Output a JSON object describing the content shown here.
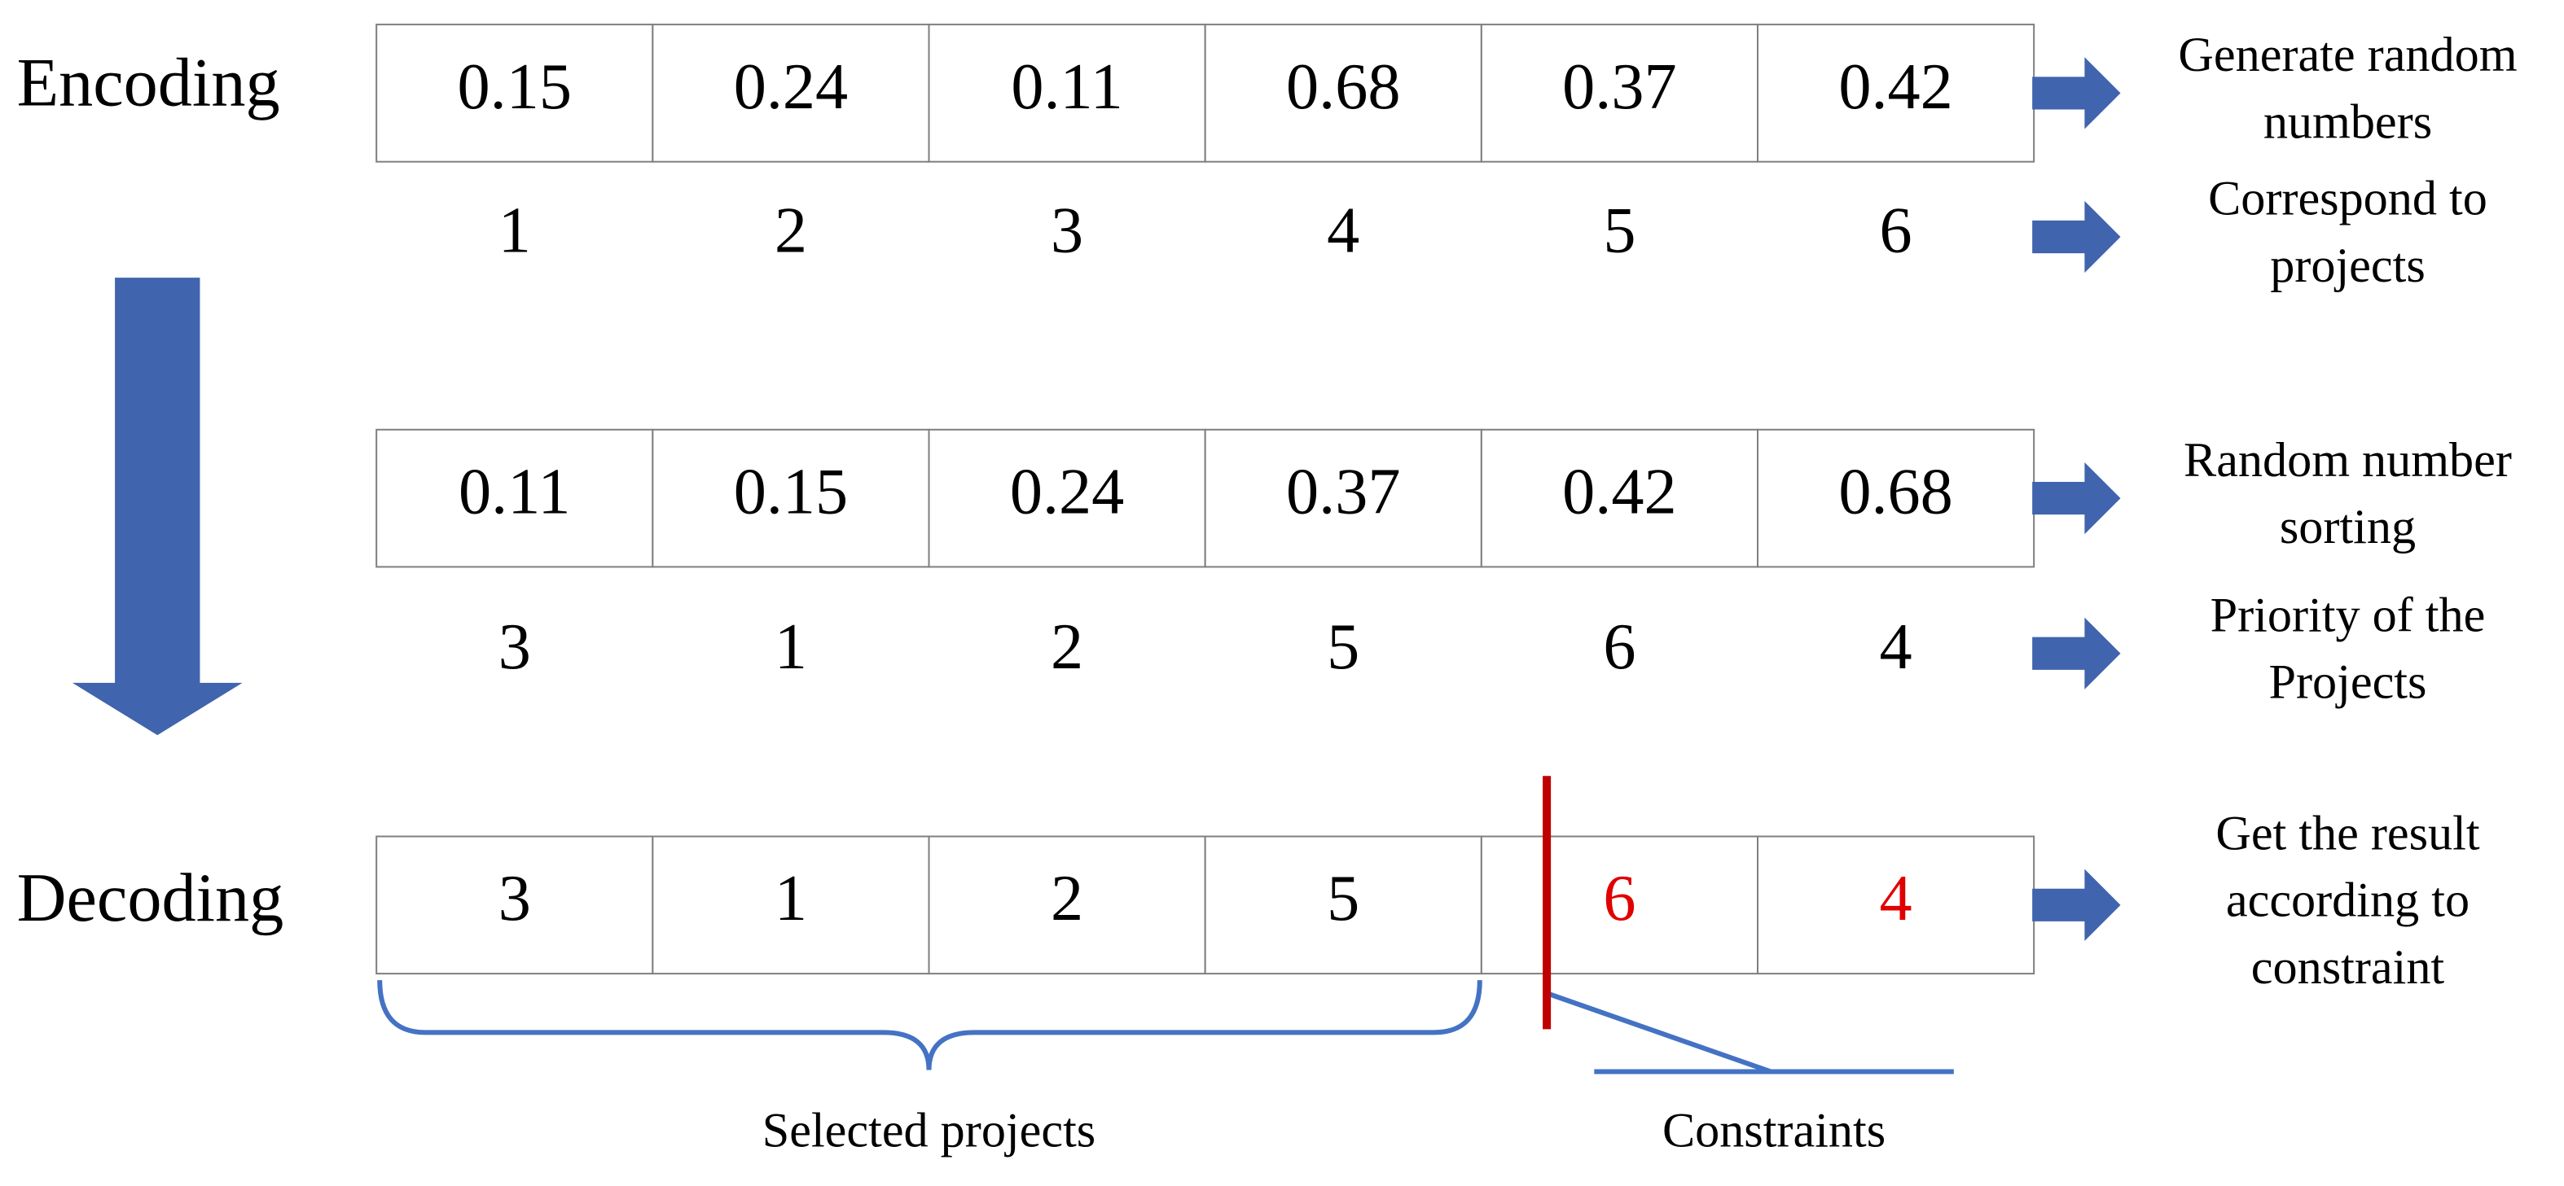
{
  "encoding_label": "Encoding",
  "decoding_label": "Decoding",
  "boxes": [
    {
      "cells": [
        "0.15",
        "0.24",
        "0.11",
        "0.68",
        "0.37",
        "0.42"
      ],
      "description": [
        "Generate random",
        "numbers"
      ]
    },
    {
      "cells": [
        "0.11",
        "0.15",
        "0.24",
        "0.37",
        "0.42",
        "0.68"
      ],
      "description": [
        "Random number",
        "sorting"
      ]
    },
    {
      "cells": [
        "3",
        "1",
        "2",
        "5",
        "6",
        "4"
      ],
      "description": [
        "Get the result",
        "according to",
        "constraint"
      ]
    }
  ],
  "indices": [
    {
      "cells": [
        "1",
        "2",
        "3",
        "4",
        "5",
        "6"
      ],
      "description": [
        "Correspond to",
        "projects"
      ]
    },
    {
      "cells": [
        "3",
        "1",
        "2",
        "5",
        "6",
        "4"
      ],
      "description": [
        "Priority of the",
        "Projects"
      ]
    }
  ],
  "selected_label": "Selected projects",
  "constraints_label": "Constraints"
}
